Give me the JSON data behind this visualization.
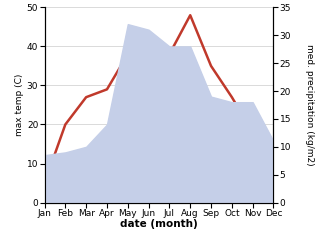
{
  "months": [
    "Jan",
    "Feb",
    "Mar",
    "Apr",
    "May",
    "Jun",
    "Jul",
    "Aug",
    "Sep",
    "Oct",
    "Nov",
    "Dec"
  ],
  "month_positions": [
    0,
    1,
    2,
    3,
    4,
    5,
    6,
    7,
    8,
    9,
    10,
    11
  ],
  "temperature": [
    5,
    20,
    27,
    29,
    38,
    38,
    38,
    48,
    35,
    27,
    18,
    11
  ],
  "precipitation": [
    8.5,
    9,
    10,
    14,
    32,
    31,
    28,
    28,
    19,
    18,
    18,
    11
  ],
  "temp_ylim": [
    0,
    50
  ],
  "precip_ylim": [
    0,
    35
  ],
  "temp_yticks": [
    0,
    10,
    20,
    30,
    40,
    50
  ],
  "precip_yticks": [
    0,
    5,
    10,
    15,
    20,
    25,
    30,
    35
  ],
  "temp_color": "#c0392b",
  "precip_fill_color": "#c5cfe8",
  "line_width": 1.8,
  "xlabel": "date (month)",
  "ylabel_left": "max temp (C)",
  "ylabel_right": "med. precipitation (kg/m2)",
  "background_color": "#ffffff"
}
